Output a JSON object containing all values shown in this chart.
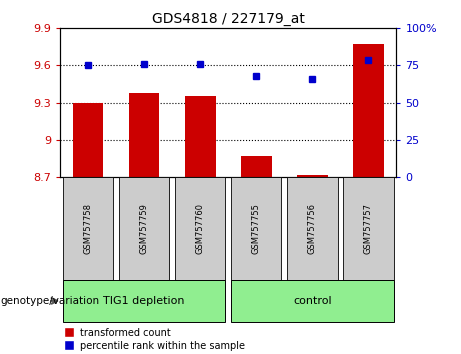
{
  "title": "GDS4818 / 227179_at",
  "samples": [
    "GSM757758",
    "GSM757759",
    "GSM757760",
    "GSM757755",
    "GSM757756",
    "GSM757757"
  ],
  "red_values": [
    9.3,
    9.38,
    9.35,
    8.87,
    8.72,
    9.77
  ],
  "blue_values": [
    75,
    76,
    76,
    68,
    66,
    79
  ],
  "red_base": 8.7,
  "ylim_left": [
    8.7,
    9.9
  ],
  "ylim_right": [
    0,
    100
  ],
  "yticks_left": [
    8.7,
    9.0,
    9.3,
    9.6,
    9.9
  ],
  "yticks_right": [
    0,
    25,
    50,
    75,
    100
  ],
  "ytick_labels_left": [
    "8.7",
    "9",
    "9.3",
    "9.6",
    "9.9"
  ],
  "ytick_labels_right": [
    "0",
    "25",
    "50",
    "75",
    "100%"
  ],
  "hlines": [
    9.6,
    9.3,
    9.0
  ],
  "groups": [
    {
      "label": "TIG1 depletion",
      "indices": [
        0,
        1,
        2
      ]
    },
    {
      "label": "control",
      "indices": [
        3,
        4,
        5
      ]
    }
  ],
  "group_color": "#90EE90",
  "bar_color": "#CC0000",
  "dot_color": "#0000CC",
  "bg_color": "#CCCCCC",
  "legend_red_label": "transformed count",
  "legend_blue_label": "percentile rank within the sample",
  "genotype_label": "genotype/variation"
}
